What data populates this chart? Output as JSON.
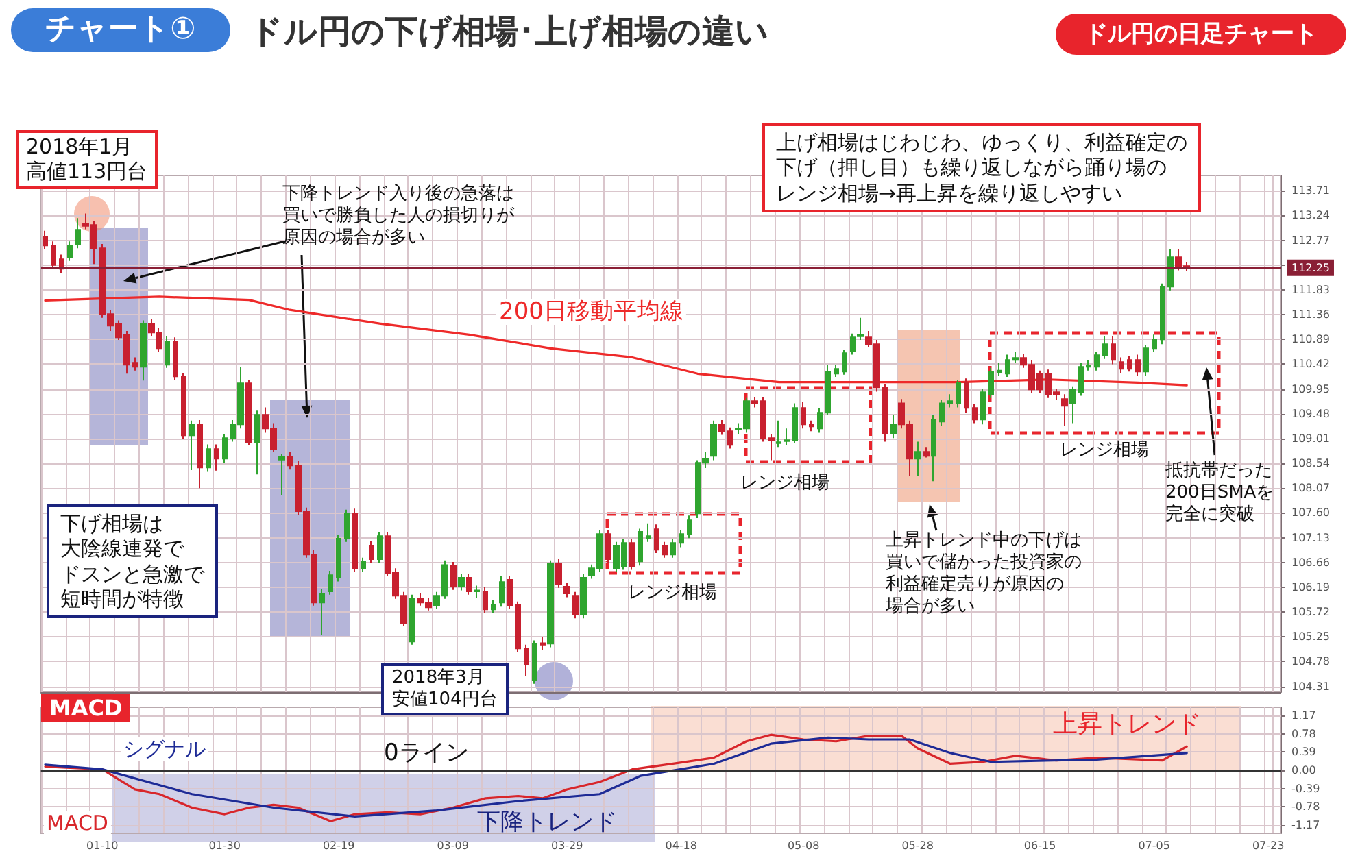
{
  "chart_data": [
    {
      "type": "candlestick",
      "title": "ドル円の下げ相場･上げ相場の違い",
      "subtitle": "チャート①",
      "categories": [
        null,
        null,
        null,
        null,
        null,
        null,
        null,
        null,
        null,
        null,
        null,
        null,
        null,
        null,
        null,
        null,
        null,
        null,
        null,
        null,
        null,
        null,
        null,
        null,
        null,
        null,
        null,
        null,
        null,
        null,
        null,
        null,
        null,
        null,
        null,
        null,
        null,
        null,
        null,
        null,
        null,
        null,
        null,
        null,
        null,
        null,
        null,
        null,
        null,
        null,
        null,
        null,
        null,
        null,
        null,
        null,
        null,
        null,
        null,
        null,
        null,
        null,
        null,
        null,
        null,
        null,
        null,
        null,
        null,
        null,
        null,
        null,
        null,
        null,
        null,
        null,
        null,
        null,
        null,
        null,
        null,
        null,
        null,
        null,
        null,
        null,
        null,
        null,
        null,
        null,
        null,
        null,
        null,
        null,
        null,
        null,
        null,
        null,
        null,
        null,
        null,
        null,
        null,
        null,
        null,
        null,
        null,
        null,
        null,
        null,
        null,
        null,
        null,
        null,
        null,
        null,
        null,
        null,
        null,
        null,
        null,
        null,
        null,
        null,
        null,
        null,
        null,
        null,
        null,
        null,
        null,
        null,
        null,
        null,
        null,
        null,
        null,
        null,
        null,
        null,
        null,
        null,
        null,
        null,
        null,
        null,
        null,
        null,
        null,
        null,
        null,
        null
      ],
      "ohlc": [
        [
          112.84,
          112.95,
          112.6,
          112.67
        ],
        [
          112.67,
          112.75,
          112.23,
          112.3
        ],
        [
          112.41,
          112.5,
          112.15,
          112.23
        ],
        [
          112.45,
          112.75,
          112.38,
          112.67
        ],
        [
          112.69,
          113.19,
          112.62,
          112.97
        ],
        [
          113.08,
          113.28,
          112.98,
          113.04
        ],
        [
          113.06,
          113.14,
          112.32,
          112.62
        ],
        [
          112.62,
          112.7,
          111.3,
          111.37
        ],
        [
          111.37,
          111.45,
          111.05,
          111.15
        ],
        [
          111.19,
          111.25,
          110.88,
          110.93
        ],
        [
          110.98,
          111.05,
          110.24,
          110.41
        ],
        [
          110.45,
          110.55,
          110.3,
          110.37
        ],
        [
          110.37,
          111.25,
          110.11,
          111.19
        ],
        [
          111.19,
          111.28,
          110.95,
          111.02
        ],
        [
          111.02,
          111.1,
          110.65,
          110.72
        ],
        [
          110.41,
          110.95,
          110.35,
          110.85
        ],
        [
          110.85,
          110.93,
          110.12,
          110.19
        ],
        [
          110.19,
          110.25,
          109,
          109.07
        ],
        [
          109.07,
          109.35,
          108.41,
          109.28
        ],
        [
          109.28,
          109.36,
          108.07,
          108.46
        ],
        [
          108.46,
          108.9,
          108.38,
          108.81
        ],
        [
          108.81,
          108.9,
          108.4,
          108.63
        ],
        [
          108.63,
          109.1,
          108.55,
          109.02
        ],
        [
          109.02,
          109.36,
          108.95,
          109.28
        ],
        [
          109.28,
          110.37,
          109.2,
          110.06
        ],
        [
          110.06,
          110.12,
          108.88,
          108.94
        ],
        [
          108.94,
          109.54,
          108.33,
          109.46
        ],
        [
          109.46,
          109.6,
          109.12,
          109.2
        ],
        [
          109.2,
          109.3,
          108.75,
          108.81
        ],
        [
          108.61,
          108.72,
          107.94,
          108.66
        ],
        [
          108.67,
          108.75,
          108.42,
          108.5
        ],
        [
          108.5,
          108.58,
          107.56,
          107.63
        ],
        [
          107.63,
          107.7,
          106.75,
          106.81
        ],
        [
          106.81,
          106.9,
          105.84,
          105.9
        ],
        [
          105.9,
          106.15,
          105.29,
          106.07
        ],
        [
          106.11,
          106.5,
          106.05,
          106.42
        ],
        [
          106.37,
          107.18,
          106.3,
          107.11
        ],
        [
          107.11,
          107.66,
          107.05,
          107.59
        ],
        [
          107.59,
          107.68,
          106.48,
          106.55
        ],
        [
          106.55,
          106.75,
          106.48,
          106.68
        ],
        [
          106.98,
          107.06,
          106.65,
          106.72
        ],
        [
          106.72,
          107.24,
          106.65,
          107.16
        ],
        [
          107.16,
          107.24,
          106.4,
          106.46
        ],
        [
          106.46,
          106.55,
          105.97,
          106.03
        ],
        [
          106.03,
          106.1,
          105.45,
          105.51
        ],
        [
          105.16,
          106.05,
          105.1,
          105.98
        ],
        [
          105.98,
          106.07,
          105.84,
          105.9
        ],
        [
          105.9,
          105.98,
          105.75,
          105.81
        ],
        [
          105.85,
          106.1,
          105.78,
          106.03
        ],
        [
          106.03,
          106.7,
          105.97,
          106.61
        ],
        [
          106.59,
          106.67,
          106.14,
          106.2
        ],
        [
          106.2,
          106.45,
          106.13,
          106.37
        ],
        [
          106.37,
          106.45,
          106.05,
          106.11
        ],
        [
          106.11,
          106.22,
          105.98,
          106.13
        ],
        [
          106.11,
          106.2,
          105.7,
          105.77
        ],
        [
          105.77,
          105.95,
          105.7,
          105.85
        ],
        [
          105.9,
          106.4,
          105.82,
          106.29
        ],
        [
          106.33,
          106.4,
          105.78,
          105.85
        ],
        [
          105.85,
          105.92,
          104.96,
          105.03
        ],
        [
          105.03,
          105.1,
          104.51,
          104.73
        ],
        [
          104.42,
          105.18,
          104.36,
          105.12
        ],
        [
          105.13,
          105.25,
          105,
          105.1
        ],
        [
          105.12,
          106.7,
          105.05,
          106.64
        ],
        [
          106.64,
          106.72,
          106.18,
          106.24
        ],
        [
          106.2,
          106.28,
          106,
          106.07
        ],
        [
          106.03,
          106.1,
          105.6,
          105.68
        ],
        [
          105.68,
          106.45,
          105.6,
          106.37
        ],
        [
          106.42,
          106.62,
          106.35,
          106.55
        ],
        [
          106.55,
          107.28,
          106.48,
          107.2
        ],
        [
          107.2,
          107.28,
          106.65,
          106.72
        ],
        [
          106.55,
          107.05,
          106.48,
          106.98
        ],
        [
          106.59,
          107.1,
          106.52,
          107.03
        ],
        [
          107.03,
          107.1,
          106.52,
          106.59
        ],
        [
          106.68,
          107.3,
          106.6,
          107.24
        ],
        [
          107.12,
          107.4,
          107.05,
          107.16
        ],
        [
          107.29,
          107.38,
          106.84,
          106.9
        ],
        [
          106.98,
          107.05,
          106.75,
          106.81
        ],
        [
          106.81,
          107.1,
          106.75,
          107.03
        ],
        [
          107.03,
          107.28,
          106.95,
          107.2
        ],
        [
          107.2,
          107.55,
          107.12,
          107.46
        ],
        [
          107.59,
          108.6,
          107.5,
          108.55
        ],
        [
          108.55,
          108.75,
          108.45,
          108.63
        ],
        [
          108.68,
          109.35,
          108.6,
          109.28
        ],
        [
          109.28,
          109.36,
          109.08,
          109.15
        ],
        [
          109.15,
          109.22,
          108.82,
          108.89
        ],
        [
          109.18,
          109.3,
          109.1,
          109.2
        ],
        [
          109.2,
          109.78,
          109.12,
          109.72
        ],
        [
          109.72,
          109.8,
          109.6,
          109.68
        ],
        [
          109.72,
          109.8,
          108.95,
          109.02
        ],
        [
          109.02,
          109.1,
          108.6,
          108.98
        ],
        [
          108.92,
          109.35,
          108.85,
          108.94
        ],
        [
          108.96,
          109.2,
          108.88,
          108.98
        ],
        [
          108.98,
          109.68,
          108.92,
          109.59
        ],
        [
          109.59,
          109.7,
          109.2,
          109.28
        ],
        [
          109.28,
          109.35,
          109.15,
          109.24
        ],
        [
          109.2,
          109.58,
          109.12,
          109.5
        ],
        [
          109.5,
          110.4,
          109.45,
          110.28
        ],
        [
          110.24,
          110.4,
          110.18,
          110.33
        ],
        [
          110.28,
          110.7,
          110.22,
          110.63
        ],
        [
          110.67,
          111,
          110.6,
          110.93
        ],
        [
          110.95,
          111.3,
          110.88,
          110.98
        ],
        [
          110.93,
          111.05,
          110.75,
          110.8
        ],
        [
          110.8,
          110.88,
          109.9,
          109.98
        ],
        [
          109.98,
          110.05,
          108.95,
          109.11
        ],
        [
          109.11,
          109.45,
          109.02,
          109.28
        ],
        [
          109.68,
          109.76,
          109.2,
          109.28
        ],
        [
          109.28,
          109.35,
          108.3,
          108.63
        ],
        [
          108.63,
          108.95,
          108.3,
          108.76
        ],
        [
          108.76,
          108.85,
          108.65,
          108.68
        ],
        [
          108.68,
          109.45,
          108.2,
          109.37
        ],
        [
          109.33,
          109.75,
          109.25,
          109.68
        ],
        [
          109.68,
          109.85,
          109.6,
          109.72
        ],
        [
          109.68,
          110.12,
          109.6,
          110.07
        ],
        [
          110.07,
          110.15,
          109.5,
          109.59
        ],
        [
          109.59,
          109.66,
          109.3,
          109.37
        ],
        [
          109.37,
          109.95,
          109.28,
          109.89
        ],
        [
          109.85,
          110.35,
          109.78,
          110.28
        ],
        [
          110.26,
          110.45,
          110.2,
          110.3
        ],
        [
          110.24,
          110.6,
          110.18,
          110.5
        ],
        [
          110.5,
          110.65,
          110.45,
          110.54
        ],
        [
          110.54,
          110.62,
          110.35,
          110.41
        ],
        [
          110.41,
          110.5,
          109.88,
          109.94
        ],
        [
          110.24,
          110.3,
          109.88,
          109.94
        ],
        [
          110.24,
          110.32,
          109.78,
          109.85
        ],
        [
          109.89,
          109.95,
          109.75,
          109.85
        ],
        [
          109.76,
          109.85,
          109.25,
          109.63
        ],
        [
          109.68,
          110,
          109.3,
          109.94
        ],
        [
          109.89,
          110.45,
          109.82,
          110.37
        ],
        [
          110.37,
          110.5,
          110.3,
          110.4
        ],
        [
          110.37,
          110.65,
          110.3,
          110.59
        ],
        [
          110.59,
          110.95,
          110.52,
          110.8
        ],
        [
          110.8,
          110.95,
          110.42,
          110.5
        ],
        [
          110.46,
          110.55,
          110.25,
          110.33
        ],
        [
          110.5,
          110.58,
          110.28,
          110.33
        ],
        [
          110.5,
          110.6,
          110.2,
          110.28
        ],
        [
          110.28,
          110.78,
          110.2,
          110.72
        ],
        [
          110.72,
          110.98,
          110.65,
          110.89
        ],
        [
          110.89,
          111.95,
          110.8,
          111.89
        ],
        [
          111.89,
          112.6,
          111.82,
          112.45
        ],
        [
          112.45,
          112.6,
          112.2,
          112.28
        ],
        [
          112.28,
          112.35,
          112.18,
          112.24
        ],
        null,
        null,
        null,
        null,
        null,
        null,
        null,
        null,
        null,
        null,
        null
      ],
      "series": [
        {
          "type": "line",
          "name": "200日移動平均線",
          "color": "#ee2a2a",
          "values": [
            111.63,
            null,
            null,
            null,
            null,
            null,
            null,
            null,
            null,
            null,
            null,
            null,
            null,
            null,
            111.7,
            null,
            null,
            null,
            null,
            null,
            null,
            null,
            null,
            null,
            null,
            111.64,
            null,
            null,
            null,
            null,
            111.45,
            null,
            null,
            null,
            null,
            null,
            null,
            null,
            null,
            null,
            null,
            111.19,
            null,
            null,
            null,
            null,
            null,
            null,
            null,
            null,
            null,
            null,
            110.98,
            null,
            null,
            null,
            null,
            null,
            null,
            null,
            null,
            null,
            110.72,
            null,
            null,
            null,
            null,
            null,
            null,
            null,
            null,
            null,
            110.55,
            null,
            null,
            null,
            null,
            null,
            null,
            null,
            110.24,
            null,
            null,
            null,
            null,
            null,
            null,
            null,
            null,
            null,
            110.08,
            null,
            null,
            null,
            null,
            null,
            null,
            null,
            null,
            null,
            null,
            110.08,
            null,
            null,
            null,
            null,
            null,
            null,
            null,
            null,
            null,
            null,
            110.08,
            null,
            null,
            null,
            null,
            null,
            null,
            null,
            null,
            null,
            null,
            110.13,
            null,
            null,
            null,
            null,
            null,
            null,
            null,
            null,
            null,
            null,
            110.07,
            null,
            null,
            null,
            null,
            null,
            110.02,
            null,
            null,
            null,
            null,
            null,
            null,
            null,
            null,
            null,
            null,
            null
          ]
        }
      ],
      "ylim": [
        104.2,
        114.0
      ],
      "yticks": [
        104.31,
        104.78,
        105.25,
        105.72,
        106.19,
        106.66,
        107.13,
        {
          "value": 107.6,
          "label": "107.60"
        },
        108.07,
        108.54,
        109.01,
        109.48,
        109.95,
        110.42,
        110.89,
        111.36,
        111.83,
        {
          "value": 112.3,
          "label": null
        },
        112.77,
        113.24,
        113.71
      ],
      "grid": true,
      "tick_labels": "y",
      "marker": "none",
      "ref_lines": [
        {
          "axis": "y",
          "value": 112.25,
          "label": "112.25",
          "color": "#8a1f35"
        }
      ],
      "annotations": [
        "ドル円の日足チャート",
        "2018年1月高値113円台",
        "下降トレンド入り後の急落は買いで勝負した人の損切りが原因の場合が多い",
        "上げ相場はじわじわ、ゆっくり、利益確定の下げ（押し目）も繰り返しながら踊り場のレンジ相場→再上昇を繰り返しやすい",
        "下げ相場は大陰線連発でドスンと急激で短時間が特徴",
        "2018年3月安値104円台",
        "レンジ相場",
        "レンジ相場",
        "レンジ相場",
        "上昇トレンド中の下げは買いで儲かった投資家の利益確定売りが原因の場合が多い",
        "抵抗帯だった200日SMAを完全に突破"
      ]
    },
    {
      "type": "line",
      "title": "MACD",
      "categories": [
        null,
        null,
        null,
        null,
        null,
        null,
        null,
        "01-10",
        null,
        null,
        null,
        null,
        null,
        null,
        null,
        null,
        null,
        null,
        null,
        null,
        null,
        null,
        "01-30",
        null,
        null,
        null,
        null,
        null,
        null,
        null,
        null,
        null,
        null,
        null,
        null,
        null,
        "02-19",
        null,
        null,
        null,
        null,
        null,
        null,
        null,
        null,
        null,
        null,
        null,
        null,
        null,
        "03-09",
        null,
        null,
        null,
        null,
        null,
        null,
        null,
        null,
        null,
        null,
        null,
        null,
        null,
        "03-29",
        null,
        null,
        null,
        null,
        null,
        null,
        null,
        null,
        null,
        null,
        null,
        null,
        null,
        "04-18",
        null,
        null,
        null,
        null,
        null,
        null,
        null,
        null,
        null,
        null,
        null,
        null,
        null,
        null,
        "05-08",
        null,
        null,
        null,
        null,
        null,
        null,
        null,
        null,
        null,
        null,
        null,
        null,
        null,
        "05-28",
        null,
        null,
        null,
        null,
        null,
        null,
        null,
        null,
        null,
        null,
        null,
        null,
        null,
        null,
        "06-15",
        null,
        null,
        null,
        null,
        null,
        null,
        null,
        null,
        null,
        null,
        null,
        null,
        null,
        "07-05",
        null,
        null,
        null,
        null,
        null,
        null,
        null,
        null,
        null,
        null,
        null,
        null,
        null,
        "07-23",
        null
      ],
      "series": [
        {
          "name": "MACD",
          "color": "#d8262b",
          "values": [
            0.08,
            null,
            null,
            null,
            null,
            null,
            null,
            0.02,
            null,
            null,
            null,
            -0.41,
            null,
            null,
            -0.51,
            null,
            null,
            null,
            -0.8,
            null,
            null,
            null,
            -0.94,
            null,
            null,
            -0.8,
            null,
            null,
            -0.74,
            null,
            null,
            -0.8,
            null,
            null,
            null,
            -1.09,
            null,
            null,
            -0.94,
            null,
            null,
            null,
            -0.9,
            null,
            null,
            null,
            -0.94,
            null,
            null,
            null,
            -0.8,
            null,
            null,
            null,
            -0.6,
            null,
            null,
            null,
            -0.55,
            null,
            null,
            -0.6,
            null,
            null,
            -0.41,
            null,
            null,
            null,
            -0.25,
            null,
            null,
            null,
            0.02,
            null,
            null,
            null,
            null,
            0.14,
            null,
            null,
            null,
            null,
            0.27,
            null,
            null,
            null,
            0.62,
            null,
            null,
            0.76,
            null,
            null,
            null,
            0.66,
            null,
            null,
            null,
            0.62,
            null,
            null,
            null,
            0.74,
            null,
            null,
            null,
            0.74,
            null,
            0.47,
            null,
            null,
            null,
            0.14,
            null,
            null,
            null,
            0.18,
            null,
            null,
            null,
            0.31,
            null,
            null,
            null,
            null,
            0.21,
            null,
            null,
            null,
            null,
            0.27,
            null,
            null,
            null,
            null,
            null,
            null,
            null,
            0.21,
            null,
            null,
            0.51,
            null,
            null,
            null,
            null,
            null,
            null,
            null,
            null,
            null,
            null,
            null
          ]
        },
        {
          "name": "シグナル",
          "color": "#1e2b96",
          "values": [
            0.12,
            null,
            null,
            null,
            null,
            null,
            null,
            0.02,
            null,
            null,
            null,
            null,
            null,
            null,
            null,
            null,
            null,
            null,
            -0.51,
            null,
            null,
            null,
            null,
            null,
            null,
            null,
            null,
            null,
            -0.8,
            null,
            null,
            null,
            null,
            null,
            null,
            null,
            null,
            null,
            -0.99,
            null,
            null,
            null,
            null,
            null,
            null,
            null,
            null,
            null,
            -0.86,
            null,
            null,
            null,
            null,
            null,
            null,
            null,
            null,
            null,
            -0.66,
            null,
            null,
            null,
            null,
            null,
            null,
            null,
            null,
            null,
            -0.51,
            null,
            null,
            null,
            null,
            -0.12,
            null,
            null,
            null,
            null,
            null,
            null,
            null,
            null,
            0.14,
            null,
            null,
            null,
            null,
            null,
            null,
            0.57,
            null,
            null,
            null,
            null,
            null,
            null,
            0.7,
            null,
            null,
            null,
            null,
            0.66,
            null,
            null,
            null,
            null,
            0.66,
            null,
            null,
            null,
            null,
            0.37,
            null,
            null,
            null,
            null,
            0.18,
            null,
            null,
            null,
            null,
            null,
            null,
            null,
            null,
            null,
            null,
            null,
            null,
            0.23,
            null,
            null,
            null,
            null,
            null,
            null,
            null,
            null,
            null,
            null,
            0.37,
            null,
            null,
            null,
            null,
            null,
            null,
            null,
            null,
            null,
            null,
            null
          ]
        }
      ],
      "ylim": [
        -1.35,
        1.35
      ],
      "yticks": [
        -1.17,
        -0.78,
        -0.39,
        {
          "value": 0,
          "label": "0.00"
        },
        0.39,
        0.78,
        1.17
      ],
      "grid": true,
      "marker": "none",
      "ref_lines": [
        {
          "axis": "y",
          "value": 0,
          "label": "0ライン",
          "color": "#333333"
        }
      ],
      "annotations": [
        "上昇トレンド",
        "下降トレンド"
      ]
    }
  ]
}
